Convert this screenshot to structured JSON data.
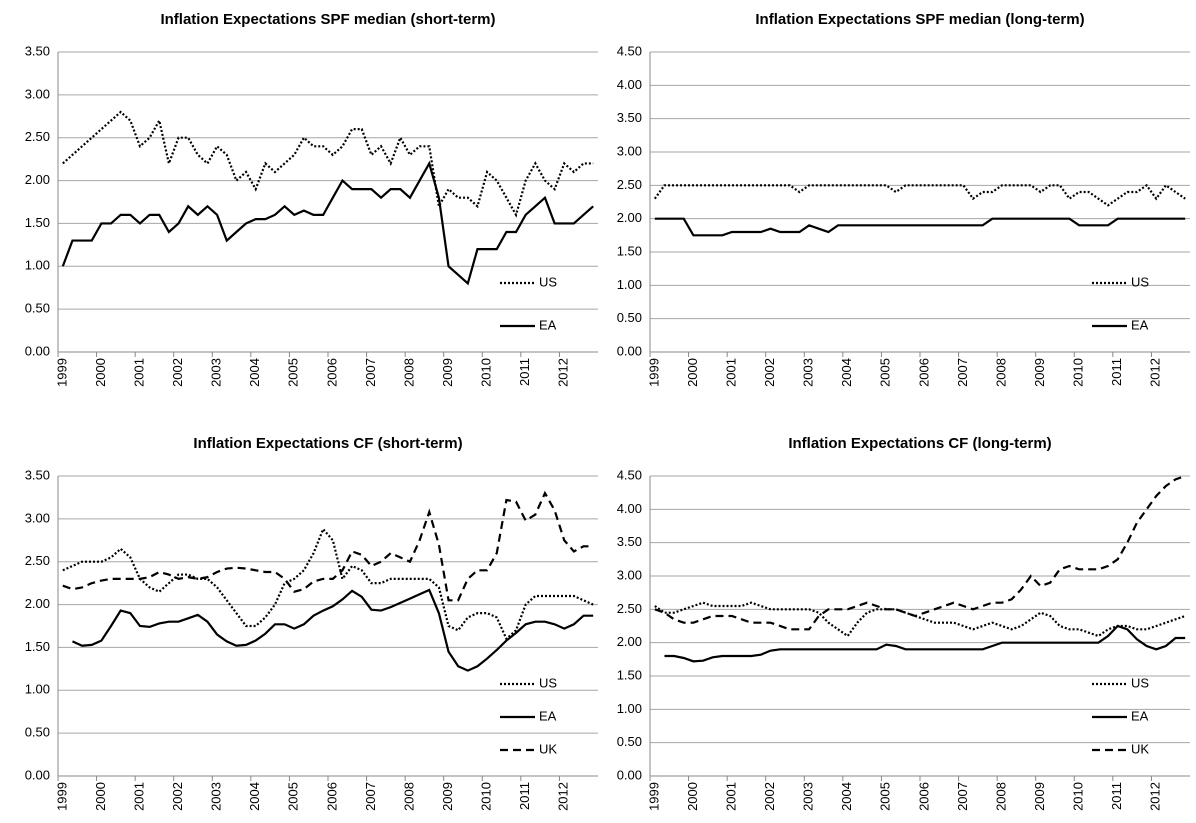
{
  "chart_data": [
    {
      "type": "line",
      "title": "Inflation Expectations SPF median (short-term)",
      "categories": [
        "1999",
        null,
        null,
        null,
        "2000",
        null,
        null,
        null,
        "2001",
        null,
        null,
        null,
        "2002",
        null,
        null,
        null,
        "2003",
        null,
        null,
        null,
        "2004",
        null,
        null,
        null,
        "2005",
        null,
        null,
        null,
        "2006",
        null,
        null,
        null,
        "2007",
        null,
        null,
        null,
        "2008",
        null,
        null,
        null,
        "2009",
        null,
        null,
        null,
        "2010",
        null,
        null,
        null,
        "2011",
        null,
        null,
        null,
        "2012",
        null,
        null,
        null
      ],
      "series": [
        {
          "name": "US",
          "color": "#000000",
          "dash": "dotted",
          "values": [
            2.2,
            2.3,
            2.4,
            2.5,
            2.6,
            2.7,
            2.8,
            2.7,
            2.4,
            2.5,
            2.7,
            2.2,
            2.5,
            2.5,
            2.3,
            2.2,
            2.4,
            2.3,
            2.0,
            2.1,
            1.9,
            2.2,
            2.1,
            2.2,
            2.3,
            2.5,
            2.4,
            2.4,
            2.3,
            2.4,
            2.6,
            2.6,
            2.3,
            2.4,
            2.2,
            2.5,
            2.3,
            2.4,
            2.4,
            1.7,
            1.9,
            1.8,
            1.8,
            1.7,
            2.1,
            2.0,
            1.8,
            1.6,
            2.0,
            2.2,
            2.0,
            1.9,
            2.2,
            2.1,
            2.2,
            2.2
          ]
        },
        {
          "name": "EA",
          "color": "#000000",
          "dash": "solid",
          "values": [
            1.0,
            1.3,
            1.3,
            1.3,
            1.5,
            1.5,
            1.6,
            1.6,
            1.5,
            1.6,
            1.6,
            1.4,
            1.5,
            1.7,
            1.6,
            1.7,
            1.6,
            1.3,
            1.4,
            1.5,
            1.55,
            1.55,
            1.6,
            1.7,
            1.6,
            1.65,
            1.6,
            1.6,
            1.8,
            2.0,
            1.9,
            1.9,
            1.9,
            1.8,
            1.9,
            1.9,
            1.8,
            2.0,
            2.2,
            1.8,
            1.0,
            0.9,
            0.8,
            1.2,
            1.2,
            1.2,
            1.4,
            1.4,
            1.6,
            1.7,
            1.8,
            1.5,
            1.5,
            1.5,
            1.6,
            1.7
          ]
        }
      ],
      "ylim": [
        0,
        3.5
      ],
      "yticks": [
        {
          "value": 0,
          "label": "0.00"
        },
        {
          "value": 0.5,
          "label": "0.50"
        },
        {
          "value": 1,
          "label": "1.00"
        },
        {
          "value": 1.5,
          "label": "1.50"
        },
        {
          "value": 2,
          "label": "2.00"
        },
        {
          "value": 2.5,
          "label": "2.50"
        },
        {
          "value": 3,
          "label": "3.00"
        },
        {
          "value": 3.5,
          "label": "3.50"
        }
      ],
      "grid": true,
      "legend": "lower right"
    },
    {
      "type": "line",
      "title": "Inflation Expectations SPF median (long-term)",
      "categories": [
        "1999",
        null,
        null,
        null,
        "2000",
        null,
        null,
        null,
        "2001",
        null,
        null,
        null,
        "2002",
        null,
        null,
        null,
        "2003",
        null,
        null,
        null,
        "2004",
        null,
        null,
        null,
        "2005",
        null,
        null,
        null,
        "2006",
        null,
        null,
        null,
        "2007",
        null,
        null,
        null,
        "2008",
        null,
        null,
        null,
        "2009",
        null,
        null,
        null,
        "2010",
        null,
        null,
        null,
        "2011",
        null,
        null,
        null,
        "2012",
        null,
        null,
        null
      ],
      "series": [
        {
          "name": "US",
          "color": "#000000",
          "dash": "dotted",
          "values": [
            2.3,
            2.5,
            2.5,
            2.5,
            2.5,
            2.5,
            2.5,
            2.5,
            2.5,
            2.5,
            2.5,
            2.5,
            2.5,
            2.5,
            2.5,
            2.4,
            2.5,
            2.5,
            2.5,
            2.5,
            2.5,
            2.5,
            2.5,
            2.5,
            2.5,
            2.4,
            2.5,
            2.5,
            2.5,
            2.5,
            2.5,
            2.5,
            2.5,
            2.3,
            2.4,
            2.4,
            2.5,
            2.5,
            2.5,
            2.5,
            2.4,
            2.5,
            2.5,
            2.3,
            2.4,
            2.4,
            2.3,
            2.2,
            2.3,
            2.4,
            2.4,
            2.5,
            2.3,
            2.5,
            2.4,
            2.3
          ]
        },
        {
          "name": "EA",
          "color": "#000000",
          "dash": "solid",
          "values": [
            2.0,
            2.0,
            2.0,
            2.0,
            1.75,
            1.75,
            1.75,
            1.75,
            1.8,
            1.8,
            1.8,
            1.8,
            1.85,
            1.8,
            1.8,
            1.8,
            1.9,
            1.85,
            1.8,
            1.9,
            1.9,
            1.9,
            1.9,
            1.9,
            1.9,
            1.9,
            1.9,
            1.9,
            1.9,
            1.9,
            1.9,
            1.9,
            1.9,
            1.9,
            1.9,
            2.0,
            2.0,
            2.0,
            2.0,
            2.0,
            2.0,
            2.0,
            2.0,
            2.0,
            1.9,
            1.9,
            1.9,
            1.9,
            2.0,
            2.0,
            2.0,
            2.0,
            2.0,
            2.0,
            2.0,
            2.0
          ]
        }
      ],
      "ylim": [
        0,
        4.5
      ],
      "yticks": [
        {
          "value": 0,
          "label": "0.00"
        },
        {
          "value": 0.5,
          "label": "0.50"
        },
        {
          "value": 1,
          "label": "1.00"
        },
        {
          "value": 1.5,
          "label": "1.50"
        },
        {
          "value": 2,
          "label": "2.00"
        },
        {
          "value": 2.5,
          "label": "2.50"
        },
        {
          "value": 3,
          "label": "3.00"
        },
        {
          "value": 3.5,
          "label": "3.50"
        },
        {
          "value": 4,
          "label": "4.00"
        },
        {
          "value": 4.5,
          "label": "4.50"
        }
      ],
      "grid": true,
      "legend": "lower right"
    },
    {
      "type": "line",
      "title": "Inflation Expectations CF (short-term)",
      "categories": [
        "1999",
        null,
        null,
        null,
        "2000",
        null,
        null,
        null,
        "2001",
        null,
        null,
        null,
        "2002",
        null,
        null,
        null,
        "2003",
        null,
        null,
        null,
        "2004",
        null,
        null,
        null,
        "2005",
        null,
        null,
        null,
        "2006",
        null,
        null,
        null,
        "2007",
        null,
        null,
        null,
        "2008",
        null,
        null,
        null,
        "2009",
        null,
        null,
        null,
        "2010",
        null,
        null,
        null,
        "2011",
        null,
        null,
        null,
        "2012",
        null,
        null,
        null
      ],
      "series": [
        {
          "name": "US",
          "color": "#000000",
          "dash": "dotted",
          "values": [
            2.4,
            2.45,
            2.5,
            2.5,
            2.5,
            2.55,
            2.65,
            2.55,
            2.3,
            2.2,
            2.15,
            2.25,
            2.35,
            2.35,
            2.3,
            2.3,
            2.2,
            2.05,
            1.9,
            1.75,
            1.75,
            1.85,
            2.0,
            2.25,
            2.3,
            2.4,
            2.6,
            2.88,
            2.75,
            2.3,
            2.45,
            2.4,
            2.25,
            2.25,
            2.3,
            2.3,
            2.3,
            2.3,
            2.3,
            2.2,
            1.75,
            1.7,
            1.85,
            1.9,
            1.9,
            1.85,
            1.6,
            1.7,
            2.0,
            2.1,
            2.1,
            2.1,
            2.1,
            2.1,
            2.05,
            2.0
          ]
        },
        {
          "name": "EA",
          "color": "#000000",
          "dash": "solid",
          "values": [
            null,
            1.57,
            1.52,
            1.53,
            1.58,
            1.75,
            1.93,
            1.9,
            1.75,
            1.74,
            1.78,
            1.8,
            1.8,
            1.84,
            1.88,
            1.8,
            1.65,
            1.57,
            1.52,
            1.53,
            1.58,
            1.66,
            1.77,
            1.77,
            1.72,
            1.77,
            1.87,
            1.93,
            1.98,
            2.06,
            2.16,
            2.09,
            1.94,
            1.93,
            1.97,
            2.02,
            2.07,
            2.12,
            2.17,
            1.9,
            1.45,
            1.28,
            1.23,
            1.28,
            1.37,
            1.47,
            1.58,
            1.67,
            1.77,
            1.8,
            1.8,
            1.77,
            1.72,
            1.77,
            1.87,
            1.87
          ]
        },
        {
          "name": "UK",
          "color": "#000000",
          "dash": "dashed",
          "values": [
            2.22,
            2.18,
            2.2,
            2.25,
            2.28,
            2.3,
            2.3,
            2.3,
            2.3,
            2.32,
            2.38,
            2.35,
            2.3,
            2.32,
            2.3,
            2.32,
            2.38,
            2.42,
            2.43,
            2.42,
            2.4,
            2.38,
            2.38,
            2.3,
            2.15,
            2.18,
            2.27,
            2.3,
            2.3,
            2.4,
            2.62,
            2.58,
            2.45,
            2.5,
            2.6,
            2.55,
            2.5,
            2.75,
            3.08,
            2.7,
            2.05,
            2.05,
            2.3,
            2.4,
            2.4,
            2.6,
            3.22,
            3.2,
            2.98,
            3.05,
            3.3,
            3.1,
            2.75,
            2.62,
            2.68,
            2.68
          ]
        }
      ],
      "ylim": [
        0,
        3.5
      ],
      "yticks": [
        {
          "value": 0,
          "label": "0.00"
        },
        {
          "value": 0.5,
          "label": "0.50"
        },
        {
          "value": 1,
          "label": "1.00"
        },
        {
          "value": 1.5,
          "label": "1.50"
        },
        {
          "value": 2,
          "label": "2.00"
        },
        {
          "value": 2.5,
          "label": "2.50"
        },
        {
          "value": 3,
          "label": "3.00"
        },
        {
          "value": 3.5,
          "label": "3.50"
        }
      ],
      "grid": true,
      "legend": "lower right"
    },
    {
      "type": "line",
      "title": "Inflation Expectations CF (long-term)",
      "categories": [
        "1999",
        null,
        null,
        null,
        "2000",
        null,
        null,
        null,
        "2001",
        null,
        null,
        null,
        "2002",
        null,
        null,
        null,
        "2003",
        null,
        null,
        null,
        "2004",
        null,
        null,
        null,
        "2005",
        null,
        null,
        null,
        "2006",
        null,
        null,
        null,
        "2007",
        null,
        null,
        null,
        "2008",
        null,
        null,
        null,
        "2009",
        null,
        null,
        null,
        "2010",
        null,
        null,
        null,
        "2011",
        null,
        null,
        null,
        "2012",
        null,
        null,
        null
      ],
      "series": [
        {
          "name": "US",
          "color": "#000000",
          "dash": "dotted",
          "values": [
            2.55,
            2.45,
            2.45,
            2.5,
            2.55,
            2.6,
            2.55,
            2.55,
            2.55,
            2.55,
            2.6,
            2.55,
            2.5,
            2.5,
            2.5,
            2.5,
            2.5,
            2.45,
            2.3,
            2.2,
            2.1,
            2.3,
            2.45,
            2.5,
            2.5,
            2.5,
            2.45,
            2.4,
            2.35,
            2.3,
            2.3,
            2.3,
            2.25,
            2.2,
            2.25,
            2.3,
            2.25,
            2.2,
            2.25,
            2.35,
            2.45,
            2.4,
            2.25,
            2.2,
            2.2,
            2.15,
            2.1,
            2.2,
            2.25,
            2.25,
            2.2,
            2.2,
            2.25,
            2.3,
            2.35,
            2.4
          ]
        },
        {
          "name": "EA",
          "color": "#000000",
          "dash": "solid",
          "values": [
            null,
            1.8,
            1.8,
            1.77,
            1.72,
            1.73,
            1.78,
            1.8,
            1.8,
            1.8,
            1.8,
            1.82,
            1.88,
            1.9,
            1.9,
            1.9,
            1.9,
            1.9,
            1.9,
            1.9,
            1.9,
            1.9,
            1.9,
            1.9,
            1.97,
            1.95,
            1.9,
            1.9,
            1.9,
            1.9,
            1.9,
            1.9,
            1.9,
            1.9,
            1.9,
            1.95,
            2.0,
            2.0,
            2.0,
            2.0,
            2.0,
            2.0,
            2.0,
            2.0,
            2.0,
            2.0,
            2.0,
            2.1,
            2.25,
            2.2,
            2.05,
            1.95,
            1.9,
            1.95,
            2.07,
            2.07
          ]
        },
        {
          "name": "UK",
          "color": "#000000",
          "dash": "dashed",
          "values": [
            2.5,
            2.45,
            2.35,
            2.3,
            2.3,
            2.35,
            2.4,
            2.4,
            2.4,
            2.35,
            2.3,
            2.3,
            2.3,
            2.25,
            2.2,
            2.2,
            2.2,
            2.4,
            2.5,
            2.5,
            2.5,
            2.55,
            2.6,
            2.55,
            2.5,
            2.5,
            2.45,
            2.4,
            2.45,
            2.5,
            2.55,
            2.6,
            2.55,
            2.5,
            2.55,
            2.6,
            2.6,
            2.65,
            2.8,
            3.0,
            2.85,
            2.9,
            3.1,
            3.15,
            3.1,
            3.1,
            3.1,
            3.15,
            3.25,
            3.5,
            3.8,
            4.0,
            4.2,
            4.35,
            4.45,
            4.5
          ]
        }
      ],
      "ylim": [
        0,
        4.5
      ],
      "yticks": [
        {
          "value": 0,
          "label": "0.00"
        },
        {
          "value": 0.5,
          "label": "0.50"
        },
        {
          "value": 1,
          "label": "1.00"
        },
        {
          "value": 1.5,
          "label": "1.50"
        },
        {
          "value": 2,
          "label": "2.00"
        },
        {
          "value": 2.5,
          "label": "2.50"
        },
        {
          "value": 3,
          "label": "3.00"
        },
        {
          "value": 3.5,
          "label": "3.50"
        },
        {
          "value": 4,
          "label": "4.00"
        },
        {
          "value": 4.5,
          "label": "4.50"
        }
      ],
      "grid": true,
      "legend": "lower right"
    }
  ]
}
